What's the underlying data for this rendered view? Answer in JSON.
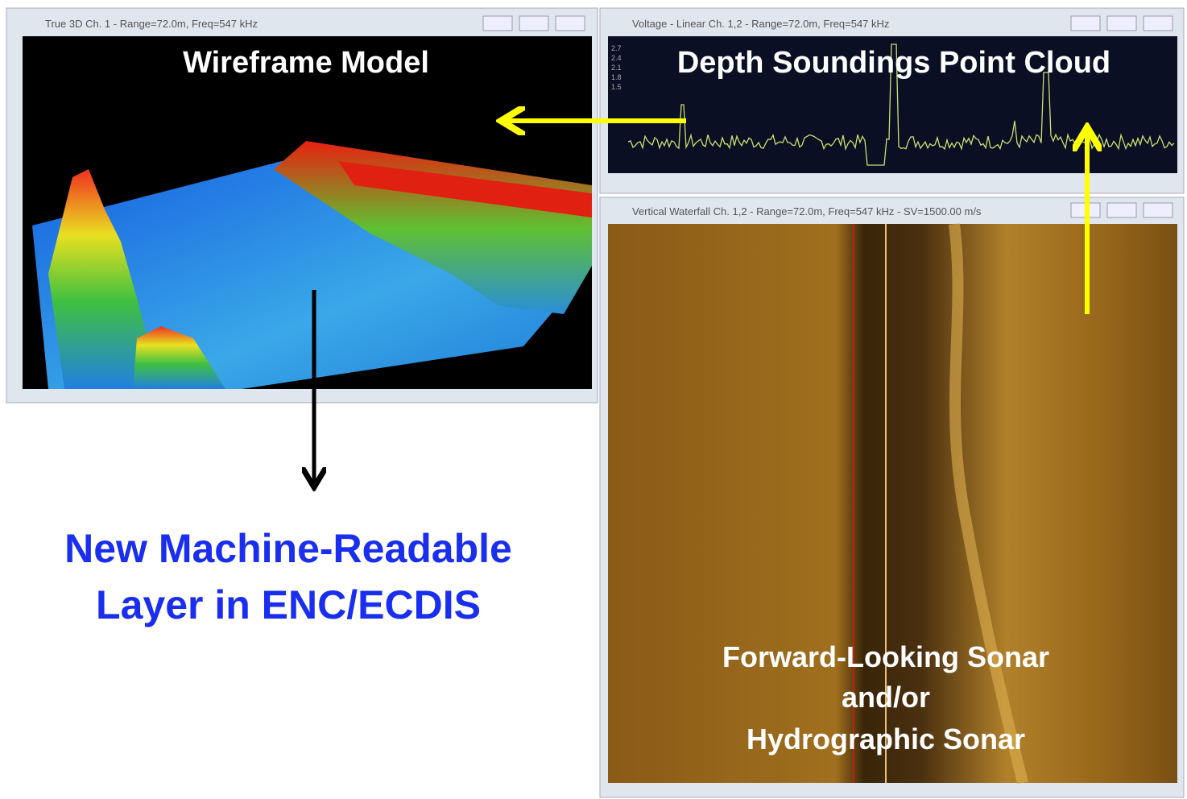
{
  "windows": [
    {
      "title": "True 3D Ch. 1 - Range=72.0m, Freq=547 kHz",
      "label": "Wireframe Model"
    },
    {
      "title": "Voltage - Linear Ch. 1,2 - Range=72.0m, Freq=547 kHz",
      "label": "Depth Soundings Point Cloud",
      "axis_labels": [
        "2.7",
        "2.4",
        "2.1",
        "1.8",
        "1.5"
      ]
    },
    {
      "title": "Vertical Waterfall Ch. 1,2 - Range=72.0m, Freq=547 kHz - SV=1500.00 m/s",
      "label_lines": [
        "Forward-Looking Sonar",
        "and/or",
        "Hydrographic Sonar"
      ]
    }
  ],
  "output": {
    "lines": [
      "New Machine-Readable",
      "Layer in ENC/ECDIS"
    ]
  }
}
